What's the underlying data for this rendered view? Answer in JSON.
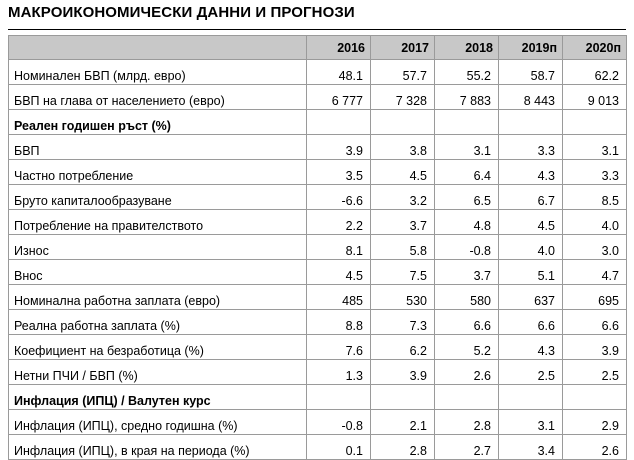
{
  "title": "МАКРОИКОНОМИЧЕСКИ ДАННИ И ПРОГНОЗИ",
  "table": {
    "header": [
      "",
      "2016",
      "2017",
      "2018",
      "2019п",
      "2020п"
    ],
    "rows": [
      {
        "type": "data",
        "label": "Номинален БВП (млрд. евро)",
        "values": [
          "48.1",
          "57.7",
          "55.2",
          "58.7",
          "62.2"
        ]
      },
      {
        "type": "data",
        "label": "БВП на глава от населението (евро)",
        "values": [
          "6 777",
          "7 328",
          "7 883",
          "8 443",
          "9 013"
        ]
      },
      {
        "type": "section",
        "label": "Реален годишен ръст (%)"
      },
      {
        "type": "data",
        "label": "БВП",
        "values": [
          "3.9",
          "3.8",
          "3.1",
          "3.3",
          "3.1"
        ]
      },
      {
        "type": "data",
        "label": "Частно потребление",
        "values": [
          "3.5",
          "4.5",
          "6.4",
          "4.3",
          "3.3"
        ]
      },
      {
        "type": "data",
        "label": "Бруто капиталообразуване",
        "values": [
          "-6.6",
          "3.2",
          "6.5",
          "6.7",
          "8.5"
        ]
      },
      {
        "type": "data",
        "label": "Потребление на правителството",
        "values": [
          "2.2",
          "3.7",
          "4.8",
          "4.5",
          "4.0"
        ]
      },
      {
        "type": "data",
        "label": "Износ",
        "values": [
          "8.1",
          "5.8",
          "-0.8",
          "4.0",
          "3.0"
        ]
      },
      {
        "type": "data",
        "label": "Внос",
        "values": [
          "4.5",
          "7.5",
          "3.7",
          "5.1",
          "4.7"
        ]
      },
      {
        "type": "data",
        "label": "Номинална работна заплата (евро)",
        "values": [
          "485",
          "530",
          "580",
          "637",
          "695"
        ]
      },
      {
        "type": "data",
        "label": "Реална работна заплата (%)",
        "values": [
          "8.8",
          "7.3",
          "6.6",
          "6.6",
          "6.6"
        ]
      },
      {
        "type": "data",
        "label": "Коефициент на безработица (%)",
        "values": [
          "7.6",
          "6.2",
          "5.2",
          "4.3",
          "3.9"
        ]
      },
      {
        "type": "data",
        "label": "Нетни ПЧИ / БВП (%)",
        "values": [
          "1.3",
          "3.9",
          "2.6",
          "2.5",
          "2.5"
        ]
      },
      {
        "type": "section",
        "label": "Инфлация (ИПЦ) / Валутен курс"
      },
      {
        "type": "data",
        "label": "Инфлация (ИПЦ), средно годишна (%)",
        "values": [
          "-0.8",
          "2.1",
          "2.8",
          "3.1",
          "2.9"
        ]
      },
      {
        "type": "data",
        "label": "Инфлация (ИПЦ), в края на периода (%)",
        "values": [
          "0.1",
          "2.8",
          "2.7",
          "3.4",
          "2.6"
        ]
      }
    ]
  }
}
